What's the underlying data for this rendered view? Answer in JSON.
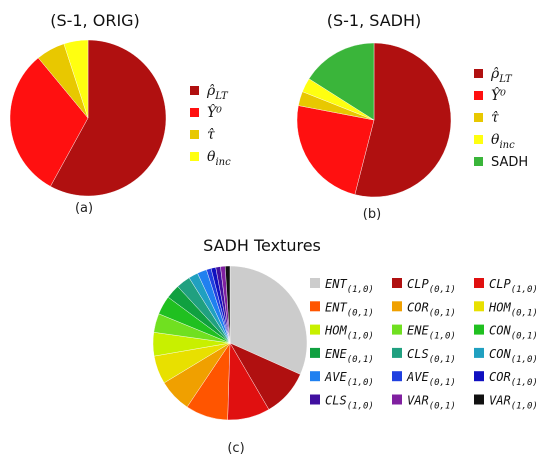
{
  "chart_data": [
    {
      "type": "pie",
      "title": "(S-1, ORIG)",
      "panel_label": "(a)",
      "legend_placement": "right",
      "series": [
        {
          "name": "ρ̂_LT",
          "value": 58,
          "color": "#b01010"
        },
        {
          "name": "Ŷ⁰",
          "value": 31,
          "color": "#ff1010"
        },
        {
          "name": "τ̂",
          "value": 6,
          "color": "#e8c800"
        },
        {
          "name": "θ_inc",
          "value": 5,
          "color": "#ffff10"
        }
      ]
    },
    {
      "type": "pie",
      "title": "(S-1, SADH)",
      "panel_label": "(b)",
      "legend_placement": "right",
      "series": [
        {
          "name": "ρ̂_LT",
          "value": 54,
          "color": "#b01010"
        },
        {
          "name": "Ŷ⁰",
          "value": 24,
          "color": "#ff1010"
        },
        {
          "name": "τ̂",
          "value": 3,
          "color": "#e8c800"
        },
        {
          "name": "θ_inc",
          "value": 3,
          "color": "#ffff10"
        },
        {
          "name": "SADH",
          "value": 16,
          "color": "#3ab53a"
        }
      ]
    },
    {
      "type": "pie",
      "title": "SADH Textures",
      "panel_label": "(c)",
      "legend_placement": "right",
      "series": [
        {
          "name": "ENT_(1,0)",
          "value": 32,
          "color": "#cccccc"
        },
        {
          "name": "CLP_(0,1)",
          "value": 10,
          "color": "#b01010"
        },
        {
          "name": "CLP_(1,0)",
          "value": 9,
          "color": "#e01010"
        },
        {
          "name": "ENT_(0,1)",
          "value": 9,
          "color": "#ff5500"
        },
        {
          "name": "COR_(0,1)",
          "value": 7,
          "color": "#f0a000"
        },
        {
          "name": "HOM_(0,1)",
          "value": 6,
          "color": "#e8e000"
        },
        {
          "name": "HOM_(1,0)",
          "value": 5,
          "color": "#c8f000"
        },
        {
          "name": "ENE_(1,0)",
          "value": 4,
          "color": "#70e020"
        },
        {
          "name": "CON_(0,1)",
          "value": 4,
          "color": "#20c020"
        },
        {
          "name": "ENE_(0,1)",
          "value": 3,
          "color": "#10a040"
        },
        {
          "name": "CLS_(0,1)",
          "value": 3,
          "color": "#20a080"
        },
        {
          "name": "CON_(1,0)",
          "value": 2,
          "color": "#20a0c0"
        },
        {
          "name": "AVE_(1,0)",
          "value": 2,
          "color": "#2080f0"
        },
        {
          "name": "AVE_(0,1)",
          "value": 1,
          "color": "#2040e0"
        },
        {
          "name": "COR_(1,0)",
          "value": 1,
          "color": "#1010c0"
        },
        {
          "name": "CLS_(1,0)",
          "value": 1,
          "color": "#4010a0"
        },
        {
          "name": "VAR_(0,1)",
          "value": 1,
          "color": "#8020a0"
        },
        {
          "name": "VAR_(1,0)",
          "value": 1,
          "color": "#111111"
        }
      ]
    }
  ],
  "legend_labels": {
    "a": [
      {
        "sym": "ρ̂",
        "sub": "LT"
      },
      {
        "sym": "Ŷ⁰",
        "sub": ""
      },
      {
        "sym": "τ̂",
        "sub": ""
      },
      {
        "sym": "θ",
        "sub": "inc"
      }
    ],
    "b": [
      {
        "sym": "ρ̂",
        "sub": "LT"
      },
      {
        "sym": "Ŷ⁰",
        "sub": ""
      },
      {
        "sym": "τ̂",
        "sub": ""
      },
      {
        "sym": "θ",
        "sub": "inc"
      },
      {
        "sym": "SADH",
        "sub": "",
        "plain": true
      }
    ],
    "c": [
      {
        "sym": "ENT",
        "sub": "(1,0)"
      },
      {
        "sym": "CLP",
        "sub": "(0,1)"
      },
      {
        "sym": "CLP",
        "sub": "(1,0)"
      },
      {
        "sym": "ENT",
        "sub": "(0,1)"
      },
      {
        "sym": "COR",
        "sub": "(0,1)"
      },
      {
        "sym": "HOM",
        "sub": "(0,1)"
      },
      {
        "sym": "HOM",
        "sub": "(1,0)"
      },
      {
        "sym": "ENE",
        "sub": "(1,0)"
      },
      {
        "sym": "CON",
        "sub": "(0,1)"
      },
      {
        "sym": "ENE",
        "sub": "(0,1)"
      },
      {
        "sym": "CLS",
        "sub": "(0,1)"
      },
      {
        "sym": "CON",
        "sub": "(1,0)"
      },
      {
        "sym": "AVE",
        "sub": "(1,0)"
      },
      {
        "sym": "AVE",
        "sub": "(0,1)"
      },
      {
        "sym": "COR",
        "sub": "(1,0)"
      },
      {
        "sym": "CLS",
        "sub": "(1,0)"
      },
      {
        "sym": "VAR",
        "sub": "(0,1)"
      },
      {
        "sym": "VAR",
        "sub": "(1,0)"
      }
    ]
  }
}
